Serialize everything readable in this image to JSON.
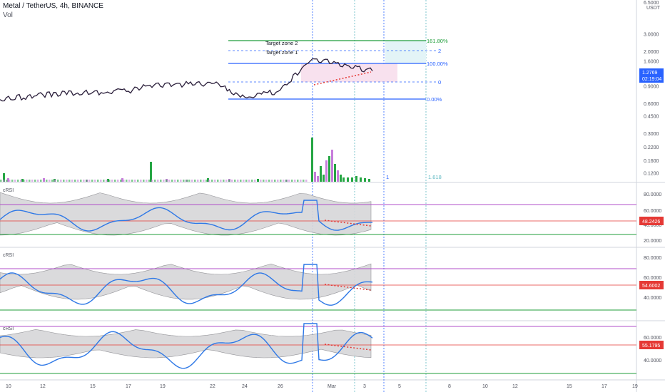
{
  "header": {
    "title": "Metal / TetherUS, 4h, BINANCE",
    "volume_label": "Vol"
  },
  "price_panel": {
    "unit": "USDT",
    "top_label": "6.5000",
    "last_price": "1.2769",
    "countdown": "02:19:04",
    "ticks": [
      "3.0000",
      "2.0000",
      "1.6000",
      "1.2000",
      "0.9000",
      "0.6000",
      "0.4500",
      "0.3000",
      "0.2200",
      "0.1600",
      "0.1200"
    ],
    "fib_levels": [
      {
        "label": "161.80%",
        "color": "#1f9d3a"
      },
      {
        "label": "2",
        "color": "#2962ff"
      },
      {
        "label": "100.00%",
        "color": "#2962ff"
      },
      {
        "label": "0",
        "color": "#2962ff"
      },
      {
        "label": "0.00%",
        "color": "#2962ff"
      }
    ],
    "targets": [
      "Target zone 2",
      "Target zone 1"
    ],
    "fib_time": [
      "1",
      "1.618"
    ],
    "colors": {
      "price_line": "#2a1e3a",
      "divergence": "#e53935",
      "bull": "#26a644",
      "bear": "#c77ddb"
    }
  },
  "indicators": [
    {
      "name": "cRSI",
      "value": "48.2426",
      "ticks": [
        "80.0000",
        "60.0000",
        "40.0000",
        "20.0000"
      ]
    },
    {
      "name": "cRSI",
      "value": "54.6002",
      "ticks": [
        "80.0000",
        "60.0000",
        "40.0000"
      ]
    },
    {
      "name": "cRSI",
      "value": "55.1795",
      "ticks": [
        "60.0000",
        "40.0000"
      ]
    }
  ],
  "time_axis": [
    "10",
    "12",
    "15",
    "17",
    "19",
    "22",
    "24",
    "26",
    "Mar",
    "3",
    "5",
    "8",
    "10",
    "12",
    "15",
    "17",
    "19"
  ],
  "chart_data": {
    "type": "line",
    "title": "Metal / TetherUS, 4h, BINANCE",
    "x": [
      "10",
      "12",
      "15",
      "17",
      "19",
      "22",
      "24",
      "26",
      "Mar",
      "3"
    ],
    "series": [
      {
        "values": [
          0.66,
          0.74,
          0.78,
          0.8,
          0.92,
          0.96,
          0.7,
          0.8,
          1.7,
          1.28
        ]
      }
    ],
    "ylim": [
      0.1,
      6.5
    ],
    "log_scale": true
  }
}
